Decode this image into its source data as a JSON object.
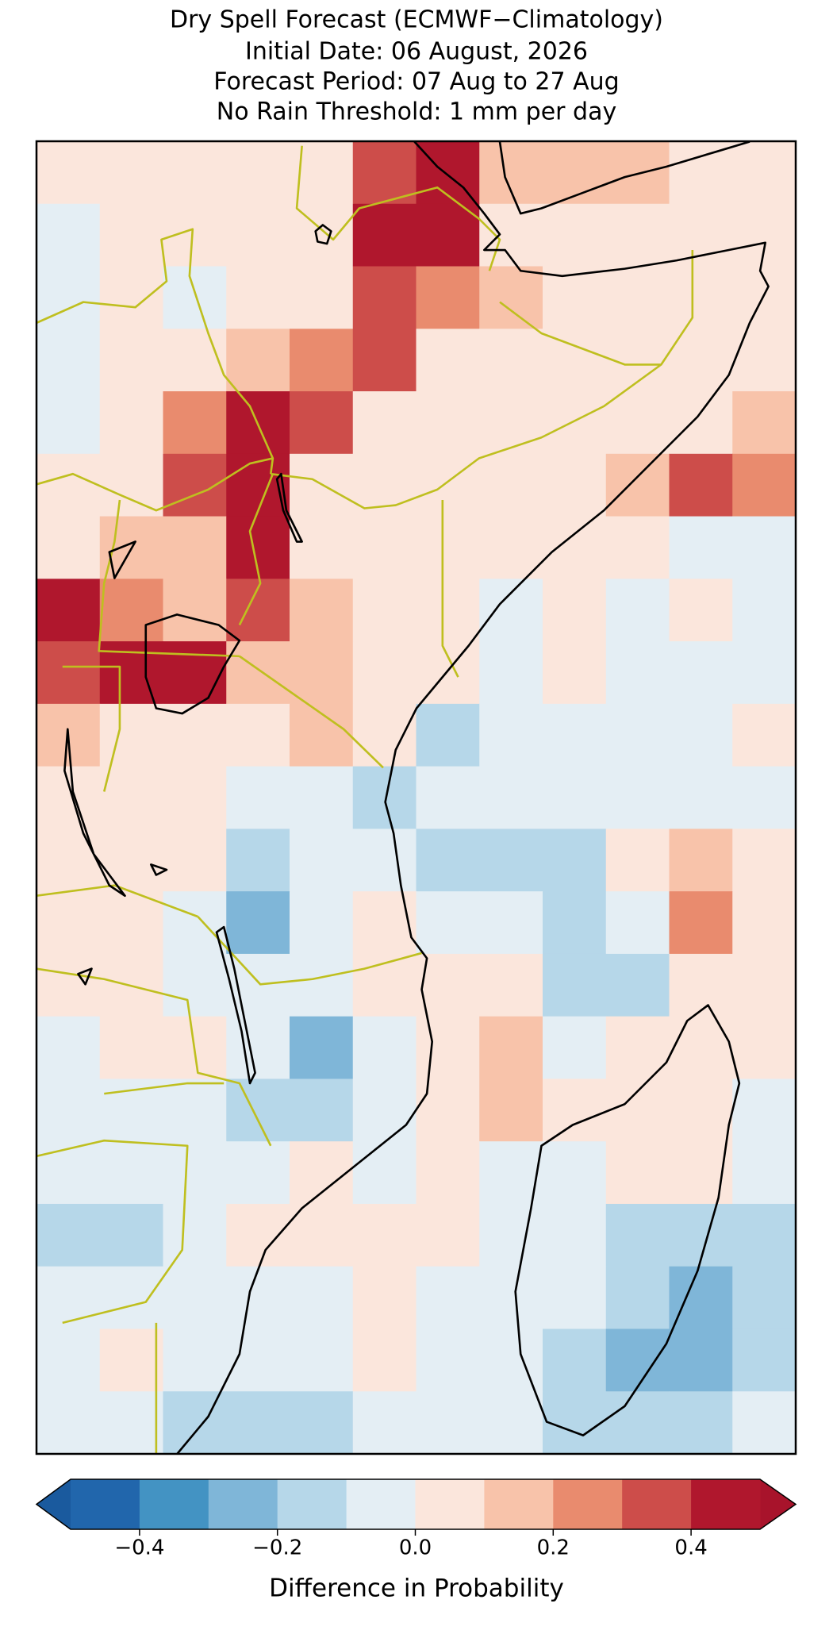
{
  "chart_data": {
    "type": "map",
    "title": "Dry Spell Forecast (ECMWF−Climatology)",
    "subtitle": [
      "Initial Date: 06 August, 2026",
      "Forecast Period: 07 Aug to 27 Aug",
      "No Rain Threshold: 1 mm per day"
    ],
    "xlim": [
      28,
      52
    ],
    "ylim": [
      -26,
      16
    ],
    "x": [
      29,
      31,
      33,
      35,
      37,
      39,
      41,
      43,
      45,
      47,
      49,
      51
    ],
    "y": [
      15,
      13,
      11,
      9,
      7,
      5,
      3,
      1,
      -1,
      -3,
      -5,
      -7,
      -9,
      -11,
      -13,
      -15,
      -17,
      -19,
      -21,
      -23,
      -25
    ],
    "values": [
      [
        0.05,
        0.05,
        0.05,
        0.05,
        0.05,
        0.35,
        0.45,
        0.15,
        0.15,
        0.15,
        0.05,
        0.05
      ],
      [
        -0.05,
        0.05,
        0.05,
        0.05,
        0.05,
        0.45,
        0.45,
        0.05,
        0.05,
        0.05,
        0.05,
        0.05
      ],
      [
        -0.05,
        0.05,
        -0.05,
        0.05,
        0.05,
        0.35,
        0.25,
        0.15,
        0.05,
        0.05,
        0.05,
        0.05
      ],
      [
        -0.05,
        0.05,
        0.05,
        0.15,
        0.25,
        0.35,
        0.05,
        0.05,
        0.05,
        0.05,
        0.05,
        0.05
      ],
      [
        -0.05,
        0.05,
        0.25,
        0.45,
        0.35,
        0.05,
        0.05,
        0.05,
        0.05,
        0.05,
        0.05,
        0.15
      ],
      [
        0.05,
        0.05,
        0.35,
        0.45,
        0.05,
        0.05,
        0.05,
        0.05,
        0.05,
        0.15,
        0.35,
        0.25
      ],
      [
        0.05,
        0.15,
        0.15,
        0.45,
        0.05,
        0.05,
        0.05,
        0.05,
        0.05,
        0.05,
        -0.05,
        -0.05
      ],
      [
        0.45,
        0.25,
        0.15,
        0.35,
        0.15,
        0.05,
        0.05,
        -0.05,
        0.05,
        -0.05,
        0.05,
        -0.05
      ],
      [
        0.35,
        0.45,
        0.45,
        0.15,
        0.15,
        0.05,
        0.05,
        -0.05,
        0.05,
        -0.05,
        -0.05,
        -0.05
      ],
      [
        0.15,
        0.05,
        0.05,
        0.05,
        0.15,
        0.05,
        -0.15,
        -0.05,
        -0.05,
        -0.05,
        -0.05,
        0.05
      ],
      [
        0.05,
        0.05,
        0.05,
        -0.05,
        -0.05,
        -0.15,
        -0.05,
        -0.05,
        -0.05,
        -0.05,
        -0.05,
        -0.05
      ],
      [
        0.05,
        0.05,
        0.05,
        -0.15,
        -0.05,
        -0.05,
        -0.15,
        -0.15,
        -0.15,
        0.05,
        0.15,
        0.05
      ],
      [
        0.05,
        0.05,
        -0.05,
        -0.25,
        -0.05,
        0.05,
        -0.05,
        -0.05,
        -0.15,
        -0.05,
        0.25,
        0.05
      ],
      [
        0.05,
        0.05,
        -0.05,
        -0.05,
        -0.05,
        0.05,
        0.05,
        0.05,
        -0.15,
        -0.15,
        0.05,
        0.05
      ],
      [
        -0.05,
        0.05,
        0.05,
        -0.05,
        -0.25,
        -0.05,
        0.05,
        0.15,
        -0.05,
        0.05,
        0.05,
        0.05
      ],
      [
        -0.05,
        -0.05,
        -0.05,
        -0.15,
        -0.15,
        -0.05,
        0.05,
        0.15,
        0.05,
        0.05,
        0.05,
        -0.05
      ],
      [
        -0.05,
        -0.05,
        -0.05,
        -0.05,
        0.05,
        -0.05,
        0.05,
        -0.05,
        -0.05,
        0.05,
        0.05,
        -0.05
      ],
      [
        -0.15,
        -0.15,
        -0.05,
        0.05,
        0.05,
        0.05,
        0.05,
        -0.05,
        -0.05,
        -0.15,
        -0.15,
        -0.15
      ],
      [
        -0.05,
        -0.05,
        -0.05,
        -0.05,
        -0.05,
        0.05,
        -0.05,
        -0.05,
        -0.05,
        -0.15,
        -0.25,
        -0.15
      ],
      [
        -0.05,
        0.05,
        -0.05,
        -0.05,
        -0.05,
        0.05,
        -0.05,
        -0.05,
        -0.15,
        -0.25,
        -0.25,
        -0.15
      ],
      [
        -0.05,
        -0.05,
        -0.15,
        -0.15,
        -0.15,
        -0.05,
        -0.05,
        -0.05,
        -0.15,
        -0.15,
        -0.15,
        -0.05
      ]
    ],
    "colorbar": {
      "label": "Difference in Probability",
      "levels": [
        -0.5,
        -0.4,
        -0.3,
        -0.2,
        -0.1,
        0,
        0.1,
        0.2,
        0.3,
        0.4,
        0.5
      ],
      "colors": [
        "#2166ac",
        "#4393c3",
        "#7fb6d8",
        "#b6d7e9",
        "#e4eef4",
        "#fbe6dc",
        "#f8c3aa",
        "#e98b6e",
        "#cd4d4a",
        "#b0172d"
      ],
      "under_color": "#1a5a9e",
      "over_color": "#a8132b",
      "ticks": [
        {
          "value": -0.4,
          "label": "−0.4"
        },
        {
          "value": -0.2,
          "label": "−0.2"
        },
        {
          "value": 0,
          "label": "0.0"
        },
        0.2,
        0.4
      ]
    }
  }
}
